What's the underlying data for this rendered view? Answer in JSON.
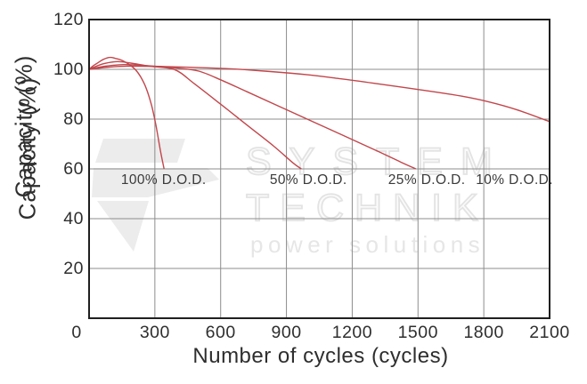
{
  "chart_data": {
    "type": "line",
    "title": "",
    "xlabel": "Number of cycles (cycles)",
    "ylabel": "Capacity (%)",
    "xlim": [
      0,
      2100
    ],
    "ylim": [
      0,
      120
    ],
    "x_ticks": [
      0,
      300,
      600,
      900,
      1200,
      1500,
      1800,
      2100
    ],
    "y_ticks": [
      120,
      100,
      80,
      60,
      40,
      20
    ],
    "grid": true,
    "legend": "none",
    "series": [
      {
        "name": "100% D.O.D.",
        "points": [
          [
            0,
            100
          ],
          [
            20,
            101.5
          ],
          [
            40,
            102.6
          ],
          [
            65,
            104
          ],
          [
            95,
            104.8
          ],
          [
            120,
            104.4
          ],
          [
            150,
            103.6
          ],
          [
            185,
            101.8
          ],
          [
            210,
            100
          ],
          [
            235,
            97
          ],
          [
            260,
            92.5
          ],
          [
            285,
            85.5
          ],
          [
            305,
            77.5
          ],
          [
            325,
            67.5
          ],
          [
            342,
            60
          ]
        ]
      },
      {
        "name": "50% D.O.D.",
        "points": [
          [
            0,
            100
          ],
          [
            60,
            102.1
          ],
          [
            129,
            103.1
          ],
          [
            190,
            102.5
          ],
          [
            280,
            101.2
          ],
          [
            390,
            99.9
          ],
          [
            480,
            94.2
          ],
          [
            600,
            86
          ],
          [
            720,
            77.6
          ],
          [
            840,
            69.3
          ],
          [
            930,
            62.4
          ],
          [
            968,
            60
          ]
        ]
      },
      {
        "name": "25% D.O.D.",
        "points": [
          [
            0,
            100
          ],
          [
            70,
            101.2
          ],
          [
            156,
            101.9
          ],
          [
            260,
            101.5
          ],
          [
            400,
            100.5
          ],
          [
            500,
            99.3
          ],
          [
            600,
            95.8
          ],
          [
            720,
            91
          ],
          [
            900,
            83.8
          ],
          [
            1100,
            75.8
          ],
          [
            1300,
            67.8
          ],
          [
            1420,
            62.8
          ],
          [
            1490,
            60
          ]
        ]
      },
      {
        "name": "10% D.O.D.",
        "points": [
          [
            0,
            100
          ],
          [
            90,
            100.9
          ],
          [
            175,
            101.3
          ],
          [
            350,
            101.1
          ],
          [
            600,
            100.4
          ],
          [
            800,
            99.3
          ],
          [
            1000,
            97.8
          ],
          [
            1140,
            96.3
          ],
          [
            1300,
            94.4
          ],
          [
            1550,
            91.3
          ],
          [
            1700,
            89.2
          ],
          [
            1820,
            87
          ],
          [
            1950,
            83.8
          ],
          [
            2100,
            79
          ]
        ]
      }
    ],
    "annotations": [
      {
        "text": "100% D.O.D.",
        "x": 340,
        "y": 55.5
      },
      {
        "text": "50% D.O.D.",
        "x": 1000,
        "y": 55.5
      },
      {
        "text": "25% D.O.D.",
        "x": 1540,
        "y": 55.5
      },
      {
        "text": "10% D.O.D.",
        "x": 1940,
        "y": 55.5
      }
    ]
  },
  "watermark": {
    "line1": "SYSTEM",
    "line2": "TECHNIK",
    "line3": "power solutions"
  },
  "colors": {
    "curve": "#c2464b",
    "grid": "#8d8d8d",
    "frame": "#1f1f1f",
    "text": "#2e2e2e",
    "watermark": "#ececec"
  }
}
